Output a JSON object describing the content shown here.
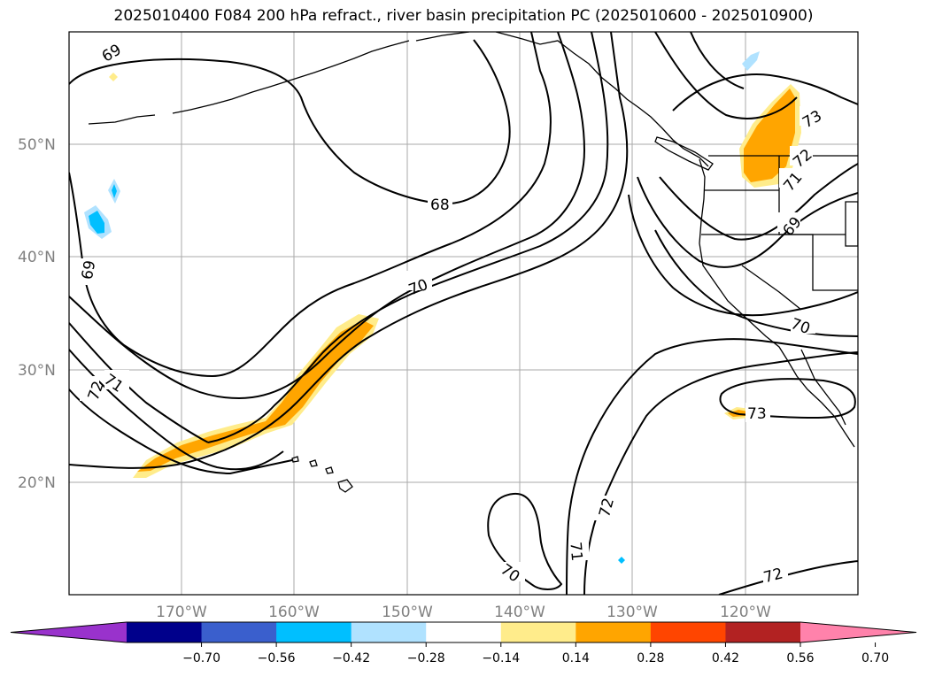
{
  "title": "2025010400 F084 200 hPa refract., river basin precipitation PC (2025010600 - 2025010900)",
  "latitude_labels": [
    "50°N",
    "40°N",
    "30°N",
    "20°N"
  ],
  "longitude_labels": [
    "170°W",
    "160°W",
    "150°W",
    "140°W",
    "130°W",
    "120°W"
  ],
  "contour_labels": [
    "69",
    "68",
    "69",
    "70",
    "72",
    "71",
    "73",
    "72",
    "71",
    "69",
    "70",
    "73",
    "72",
    "71",
    "70",
    "72"
  ],
  "colorbar": {
    "colors": [
      "#9932cc",
      "#00008b",
      "#3a5fcd",
      "#00bfff",
      "#b0e2ff",
      "#ffffff",
      "#ffec8b",
      "#ffa500",
      "#ff4500",
      "#b22222",
      "#ff82ab"
    ],
    "tick_labels": [
      "−0.70",
      "−0.56",
      "−0.42",
      "−0.28",
      "−0.14",
      "0.14",
      "0.28",
      "0.42",
      "0.56",
      "0.70"
    ]
  },
  "colors": {
    "land": "#000000",
    "grid": "#aaaaaa",
    "contour": "#000000"
  }
}
